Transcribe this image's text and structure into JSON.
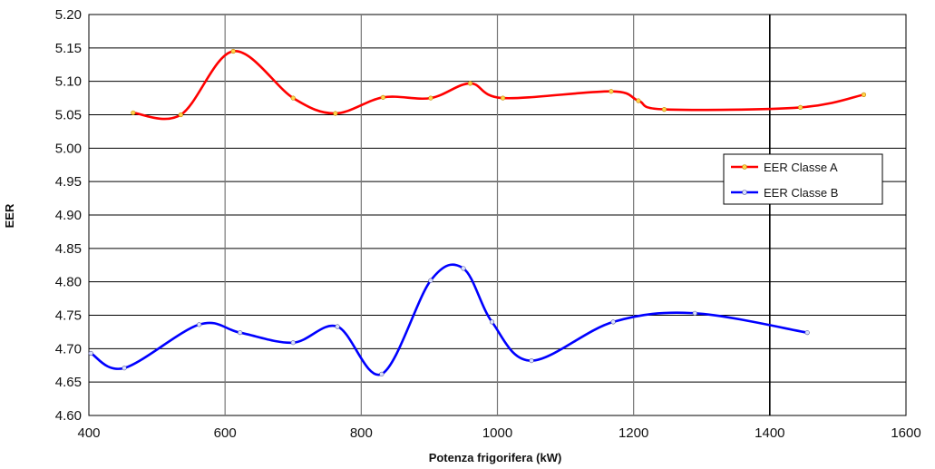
{
  "chart_data": {
    "type": "line",
    "title": "",
    "xlabel": "Potenza frigorifera (kW)",
    "ylabel": "EER",
    "xlim": [
      400,
      1600
    ],
    "ylim": [
      4.6,
      5.2
    ],
    "xticks": [
      400,
      600,
      800,
      1000,
      1200,
      1400,
      1600
    ],
    "yticks": [
      4.6,
      4.65,
      4.7,
      4.75,
      4.8,
      4.85,
      4.9,
      4.95,
      5.0,
      5.05,
      5.1,
      5.15,
      5.2
    ],
    "grid": true,
    "legend_position": "right",
    "series": [
      {
        "name": "EER Classe A",
        "color": "#ff0000",
        "points": [
          [
            465,
            5.053
          ],
          [
            535,
            5.05
          ],
          [
            612,
            5.145
          ],
          [
            700,
            5.075
          ],
          [
            762,
            5.052
          ],
          [
            832,
            5.076
          ],
          [
            902,
            5.075
          ],
          [
            960,
            5.097
          ],
          [
            1008,
            5.075
          ],
          [
            1167,
            5.085
          ],
          [
            1207,
            5.071
          ],
          [
            1245,
            5.058
          ],
          [
            1445,
            5.061
          ],
          [
            1538,
            5.08
          ]
        ]
      },
      {
        "name": "EER Classe B",
        "color": "#0000ff",
        "points": [
          [
            403,
            4.693
          ],
          [
            452,
            4.671
          ],
          [
            562,
            4.736
          ],
          [
            622,
            4.724
          ],
          [
            700,
            4.709
          ],
          [
            765,
            4.733
          ],
          [
            830,
            4.662
          ],
          [
            902,
            4.802
          ],
          [
            950,
            4.82
          ],
          [
            992,
            4.74
          ],
          [
            1050,
            4.682
          ],
          [
            1170,
            4.74
          ],
          [
            1290,
            4.753
          ],
          [
            1455,
            4.724
          ]
        ]
      }
    ]
  }
}
